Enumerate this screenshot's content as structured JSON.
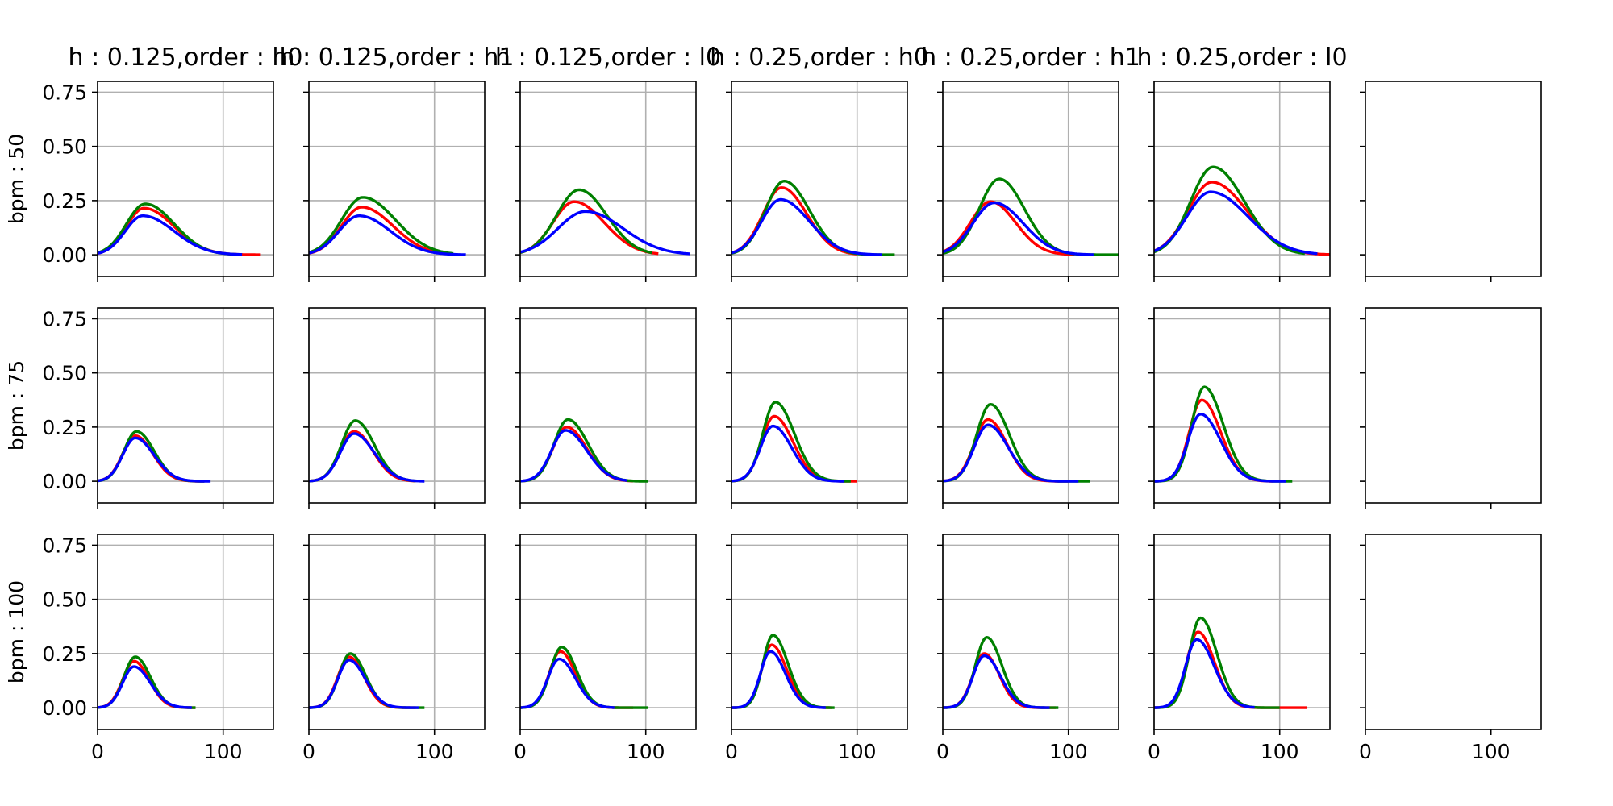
{
  "chart_data": {
    "type": "line",
    "layout": {
      "rows": 3,
      "cols": 7
    },
    "titles": [
      "h : 0.125,order : h0",
      "h : 0.125,order : h1",
      "h : 0.125,order : l0",
      "h : 0.25,order : h0",
      "h : 0.25,order : h1",
      "h : 0.25,order : l0"
    ],
    "row_labels": [
      "bpm : 50",
      "bpm : 75",
      "bpm : 100"
    ],
    "xlim": [
      0,
      140
    ],
    "ylim": [
      -0.1,
      0.8
    ],
    "xticks": [
      0,
      100
    ],
    "yticks": [
      0.0,
      0.25,
      0.5,
      0.75
    ],
    "ytick_labels": [
      "0.00",
      "0.25",
      "0.50",
      "0.75"
    ],
    "grid": true,
    "colors": {
      "red": "#ff0000",
      "green": "#008000",
      "blue": "#0000ff",
      "grid": "#b0b0b0"
    },
    "series_order": [
      "red",
      "green",
      "blue"
    ],
    "panels": [
      [
        {
          "red": {
            "peak": 0.215,
            "mu": 37,
            "s1": 14,
            "s2": 24,
            "end": 130
          },
          "green": {
            "peak": 0.235,
            "mu": 38,
            "s1": 15,
            "s2": 23,
            "end": 110
          },
          "blue": {
            "peak": 0.18,
            "mu": 36,
            "s1": 14,
            "s2": 25,
            "end": 115
          }
        },
        {
          "red": {
            "peak": 0.22,
            "mu": 42,
            "s1": 16,
            "s2": 25,
            "end": 110
          },
          "green": {
            "peak": 0.265,
            "mu": 43,
            "s1": 17,
            "s2": 26,
            "end": 115
          },
          "blue": {
            "peak": 0.18,
            "mu": 40,
            "s1": 16,
            "s2": 25,
            "end": 125
          }
        },
        {
          "red": {
            "peak": 0.245,
            "mu": 43,
            "s1": 17,
            "s2": 24,
            "end": 110
          },
          "green": {
            "peak": 0.3,
            "mu": 47,
            "s1": 18,
            "s2": 22,
            "end": 105
          },
          "blue": {
            "peak": 0.2,
            "mu": 52,
            "s1": 22,
            "s2": 30,
            "end": 135
          }
        },
        {
          "red": {
            "peak": 0.31,
            "mu": 40,
            "s1": 15,
            "s2": 20,
            "end": 100
          },
          "green": {
            "peak": 0.34,
            "mu": 42,
            "s1": 15,
            "s2": 20,
            "end": 130
          },
          "blue": {
            "peak": 0.255,
            "mu": 39,
            "s1": 15,
            "s2": 23,
            "end": 120
          }
        },
        {
          "red": {
            "peak": 0.245,
            "mu": 38,
            "s1": 16,
            "s2": 20,
            "end": 105
          },
          "green": {
            "peak": 0.35,
            "mu": 45,
            "s1": 16,
            "s2": 20,
            "end": 140
          },
          "blue": {
            "peak": 0.24,
            "mu": 41,
            "s1": 17,
            "s2": 23,
            "end": 120
          }
        },
        {
          "red": {
            "peak": 0.335,
            "mu": 46,
            "s1": 19,
            "s2": 28,
            "end": 140
          },
          "green": {
            "peak": 0.405,
            "mu": 47,
            "s1": 18,
            "s2": 25,
            "end": 120
          },
          "blue": {
            "peak": 0.29,
            "mu": 45,
            "s1": 19,
            "s2": 30,
            "end": 130
          }
        },
        null
      ],
      [
        {
          "red": {
            "peak": 0.21,
            "mu": 30,
            "s1": 10,
            "s2": 14,
            "end": 85
          },
          "green": {
            "peak": 0.23,
            "mu": 31,
            "s1": 10,
            "s2": 14,
            "end": 85
          },
          "blue": {
            "peak": 0.2,
            "mu": 30,
            "s1": 10,
            "s2": 15,
            "end": 90
          }
        },
        {
          "red": {
            "peak": 0.23,
            "mu": 36,
            "s1": 11,
            "s2": 15,
            "end": 85
          },
          "green": {
            "peak": 0.28,
            "mu": 37,
            "s1": 11,
            "s2": 15,
            "end": 85
          },
          "blue": {
            "peak": 0.22,
            "mu": 36,
            "s1": 11,
            "s2": 16,
            "end": 92
          }
        },
        {
          "red": {
            "peak": 0.25,
            "mu": 37,
            "s1": 11,
            "s2": 16,
            "end": 90
          },
          "green": {
            "peak": 0.285,
            "mu": 38,
            "s1": 11,
            "s2": 16,
            "end": 102
          },
          "blue": {
            "peak": 0.235,
            "mu": 36,
            "s1": 11,
            "s2": 17,
            "end": 85
          }
        },
        {
          "red": {
            "peak": 0.3,
            "mu": 34,
            "s1": 10,
            "s2": 15,
            "end": 100
          },
          "green": {
            "peak": 0.365,
            "mu": 35,
            "s1": 10,
            "s2": 15,
            "end": 95
          },
          "blue": {
            "peak": 0.255,
            "mu": 33,
            "s1": 10,
            "s2": 15,
            "end": 90
          }
        },
        {
          "red": {
            "peak": 0.285,
            "mu": 36,
            "s1": 11,
            "s2": 15,
            "end": 100
          },
          "green": {
            "peak": 0.355,
            "mu": 38,
            "s1": 11,
            "s2": 15,
            "end": 117
          },
          "blue": {
            "peak": 0.26,
            "mu": 36,
            "s1": 11,
            "s2": 16,
            "end": 108
          }
        },
        {
          "red": {
            "peak": 0.375,
            "mu": 38,
            "s1": 10,
            "s2": 15,
            "end": 95
          },
          "green": {
            "peak": 0.435,
            "mu": 40,
            "s1": 10,
            "s2": 15,
            "end": 110
          },
          "blue": {
            "peak": 0.31,
            "mu": 37,
            "s1": 10,
            "s2": 16,
            "end": 105
          }
        },
        null
      ],
      [
        {
          "red": {
            "peak": 0.215,
            "mu": 29,
            "s1": 9,
            "s2": 12,
            "end": 78
          },
          "green": {
            "peak": 0.235,
            "mu": 30,
            "s1": 9,
            "s2": 12,
            "end": 78
          },
          "blue": {
            "peak": 0.19,
            "mu": 29,
            "s1": 9,
            "s2": 13,
            "end": 75
          }
        },
        {
          "red": {
            "peak": 0.235,
            "mu": 32,
            "s1": 9,
            "s2": 12,
            "end": 85
          },
          "green": {
            "peak": 0.25,
            "mu": 33,
            "s1": 9,
            "s2": 12,
            "end": 92
          },
          "blue": {
            "peak": 0.22,
            "mu": 32,
            "s1": 9,
            "s2": 13,
            "end": 88
          }
        },
        {
          "red": {
            "peak": 0.26,
            "mu": 32,
            "s1": 9,
            "s2": 12,
            "end": 90
          },
          "green": {
            "peak": 0.28,
            "mu": 33,
            "s1": 9,
            "s2": 12,
            "end": 102
          },
          "blue": {
            "peak": 0.225,
            "mu": 31,
            "s1": 9,
            "s2": 13,
            "end": 75
          }
        },
        {
          "red": {
            "peak": 0.29,
            "mu": 32,
            "s1": 8,
            "s2": 12,
            "end": 80
          },
          "green": {
            "peak": 0.335,
            "mu": 33,
            "s1": 8,
            "s2": 12,
            "end": 82
          },
          "blue": {
            "peak": 0.26,
            "mu": 31,
            "s1": 8,
            "s2": 12,
            "end": 75
          }
        },
        {
          "red": {
            "peak": 0.25,
            "mu": 33,
            "s1": 9,
            "s2": 12,
            "end": 90
          },
          "green": {
            "peak": 0.325,
            "mu": 35,
            "s1": 9,
            "s2": 12,
            "end": 92
          },
          "blue": {
            "peak": 0.24,
            "mu": 33,
            "s1": 9,
            "s2": 13,
            "end": 85
          }
        },
        {
          "red": {
            "peak": 0.35,
            "mu": 35,
            "s1": 9,
            "s2": 13,
            "end": 122
          },
          "green": {
            "peak": 0.415,
            "mu": 37,
            "s1": 9,
            "s2": 13,
            "end": 100
          },
          "blue": {
            "peak": 0.315,
            "mu": 34,
            "s1": 9,
            "s2": 14,
            "end": 80
          }
        },
        null
      ]
    ]
  }
}
